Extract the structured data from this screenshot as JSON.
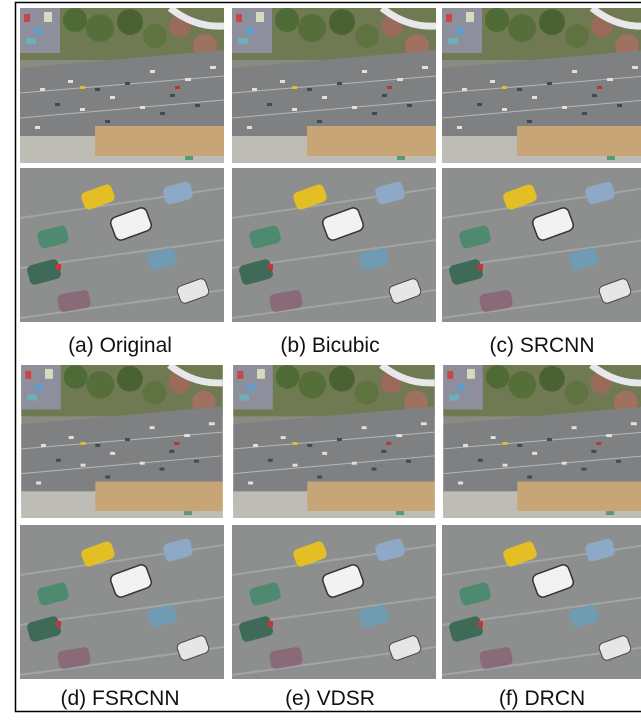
{
  "panels": [
    {
      "caption": "(a) Original"
    },
    {
      "caption": "(b) Bicubic"
    },
    {
      "caption": "(c) SRCNN"
    },
    {
      "caption": "(d) FSRCNN"
    },
    {
      "caption": "(e) VDSR"
    },
    {
      "caption": "(f) DRCN"
    }
  ]
}
